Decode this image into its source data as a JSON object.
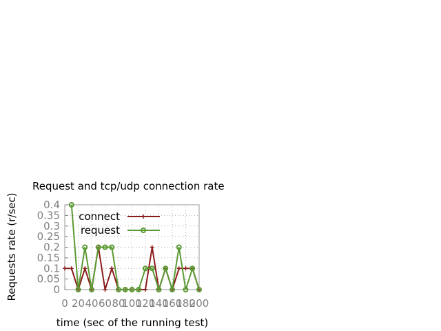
{
  "chart_data": {
    "type": "line",
    "title": "Request and tcp/udp connection rate",
    "xlabel": "time (sec of the running test)",
    "ylabel": "Requests rate (r/sec)",
    "xlim": [
      0,
      200
    ],
    "ylim": [
      0,
      0.4
    ],
    "xticks": [
      "0",
      "20",
      "40",
      "60",
      "80",
      "100",
      "120",
      "140",
      "160",
      "180",
      "200"
    ],
    "yticks": [
      "0",
      "0.05",
      "0.1",
      "0.15",
      "0.2",
      "0.25",
      "0.3",
      "0.35",
      "0.4"
    ],
    "grid": true,
    "legend_position": "top-right",
    "series": [
      {
        "name": "connect",
        "color": "#8b1a1a",
        "marker": "plus",
        "x": [
          0,
          10,
          20,
          30,
          40,
          50,
          60,
          70,
          80,
          90,
          100,
          110,
          120,
          130,
          140,
          150,
          160,
          170,
          180,
          190,
          200
        ],
        "y": [
          0.1,
          0.1,
          0,
          0.1,
          0,
          0.2,
          0,
          0.1,
          0,
          0,
          0,
          0,
          0,
          0.2,
          0,
          0.1,
          0,
          0.1,
          0.1,
          0.1,
          0
        ]
      },
      {
        "name": "request",
        "color": "#5a9a32",
        "marker": "circle",
        "x": [
          10,
          20,
          30,
          40,
          50,
          60,
          70,
          80,
          90,
          100,
          110,
          120,
          130,
          140,
          150,
          160,
          170,
          180,
          190,
          200
        ],
        "y": [
          0.4,
          0,
          0.2,
          0,
          0.2,
          0.2,
          0.2,
          0,
          0,
          0,
          0,
          0.1,
          0.1,
          0,
          0.1,
          0,
          0.2,
          0,
          0.1,
          0
        ]
      }
    ]
  }
}
